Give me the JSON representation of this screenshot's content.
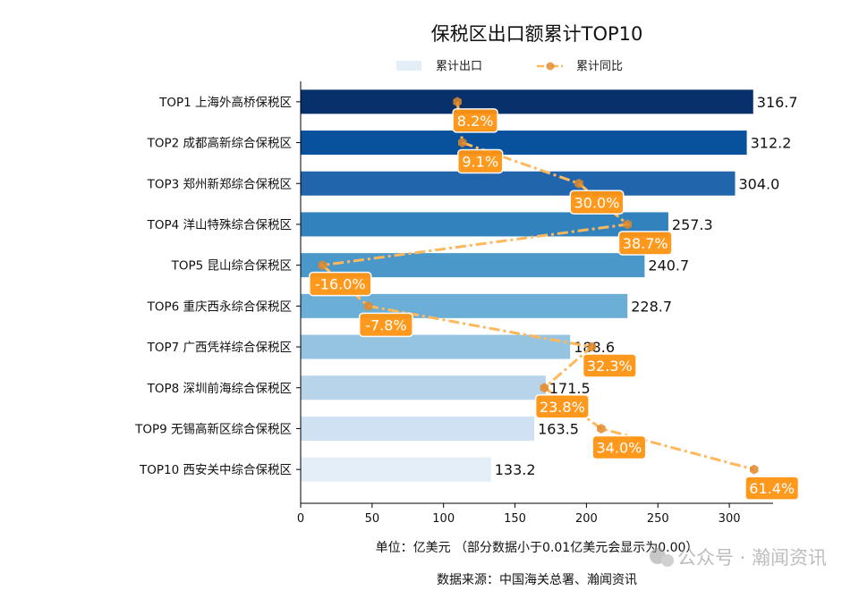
{
  "chart_data": {
    "type": "bar",
    "orientation": "horizontal",
    "title": "保税区出口额累计TOP10",
    "categories": [
      "TOP1 上海外高桥保税区",
      "TOP2 成都高新综合保税区",
      "TOP3 郑州新郑综合保税区",
      "TOP4 洋山特殊综合保税区",
      "TOP5 昆山综合保税区",
      "TOP6 重庆西永综合保税区",
      "TOP7 广西凭祥综合保税区",
      "TOP8 深圳前海综合保税区",
      "TOP9 无锡高新区综合保税区",
      "TOP10 西安关中综合保税区"
    ],
    "series": [
      {
        "name": "累计出口",
        "type": "bar",
        "values": [
          316.7,
          312.2,
          304.0,
          257.3,
          240.7,
          228.7,
          188.6,
          171.5,
          163.5,
          133.2
        ],
        "value_labels": [
          "316.7",
          "312.2",
          "304.0",
          "257.3",
          "240.7",
          "228.7",
          "188.6",
          "171.5",
          "163.5",
          "133.2"
        ]
      },
      {
        "name": "累计同比",
        "type": "line",
        "axis": "secondary-hidden",
        "values": [
          8.2,
          9.1,
          30.0,
          38.7,
          -16.0,
          -7.8,
          32.3,
          23.8,
          34.0,
          61.4
        ],
        "value_labels": [
          "8.2%",
          "9.1%",
          "30.0%",
          "38.7%",
          "-16.0%",
          "-7.8%",
          "32.3%",
          "23.8%",
          "34.0%",
          "61.4%"
        ]
      }
    ],
    "xlim": [
      0,
      332.5
    ],
    "secondary_xlim": [
      -19.9,
      65.3
    ],
    "xticks": [
      0,
      50,
      100,
      150,
      200,
      250,
      300
    ],
    "xtick_labels": [
      "0",
      "50",
      "100",
      "150",
      "200",
      "250",
      "300"
    ],
    "xlabel": "单位：亿美元  （部分数据小于0.01亿美元会显示为0.00）",
    "source": "数据来源：中国海关总署、瀚闻资讯",
    "legend_placement": "top-center",
    "grid": false,
    "colors": {
      "bars": [
        "#08306b",
        "#08519c",
        "#2166ac",
        "#3182bd",
        "#4a97c9",
        "#6baed6",
        "#94c4df",
        "#b7d4ea",
        "#cfe1f2",
        "#e3eef9"
      ],
      "line": "#ffb85c",
      "marker": "#e08a2a",
      "label_bg": "#ff9412",
      "legend_bar": "#e3eef9"
    }
  },
  "watermark": "公众号 · 瀚闻资讯"
}
